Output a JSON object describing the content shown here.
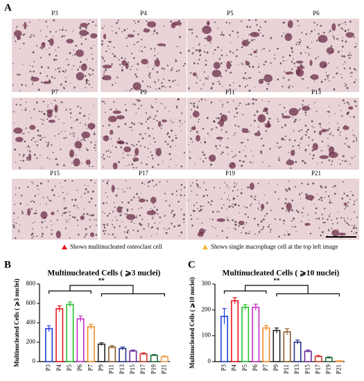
{
  "panel_a": {
    "label": "A",
    "images": [
      "P3",
      "P4",
      "P5",
      "P6",
      "P7",
      "P9",
      "P11",
      "P13",
      "P15",
      "P17",
      "P19",
      "P21"
    ],
    "legend": [
      "Shows multinucleated osteoclast cell",
      "Shows single macrophage cell at the top left image"
    ]
  },
  "chart_data": [
    {
      "type": "bar",
      "panel": "B",
      "title": "Multinucleated Cells ( ⩾3 nuclei)",
      "y_label": "Multinucleated Cells ( ⩾3 nuclei)",
      "categories": [
        "P3",
        "P4",
        "P5",
        "P6",
        "P7",
        "P9",
        "P11",
        "P13",
        "P15",
        "P17",
        "P19",
        "P21"
      ],
      "values": [
        340,
        545,
        590,
        440,
        360,
        180,
        150,
        135,
        110,
        80,
        65,
        50
      ],
      "errors": [
        30,
        30,
        25,
        30,
        25,
        15,
        15,
        15,
        10,
        10,
        8,
        8
      ],
      "colors": [
        "#1f3fd6",
        "#e8141b",
        "#22c22b",
        "#c42bc8",
        "#f08a24",
        "#222222",
        "#8a5a2b",
        "#23308f",
        "#6a2b9a",
        "#d0352d",
        "#1e6b3a",
        "#f0a050"
      ],
      "ylim": [
        0,
        800
      ],
      "yticks": [
        0,
        200,
        400,
        600,
        800
      ],
      "annotation": "**"
    },
    {
      "type": "bar",
      "panel": "C",
      "title": "Multinucleated Cells ( ⩾10 nuclei)",
      "y_label": "Multinucleated Cells ( ⩾10 nuclei)",
      "categories": [
        "P3",
        "P4",
        "P5",
        "P6",
        "P7",
        "P9",
        "P11",
        "P13",
        "P15",
        "P17",
        "P19",
        "P21"
      ],
      "values": [
        175,
        235,
        210,
        210,
        130,
        120,
        115,
        75,
        40,
        20,
        15,
        3
      ],
      "errors": [
        30,
        12,
        10,
        12,
        10,
        10,
        12,
        8,
        5,
        4,
        3,
        1
      ],
      "colors": [
        "#1f3fd6",
        "#e8141b",
        "#22c22b",
        "#c42bc8",
        "#f08a24",
        "#222222",
        "#8a5a2b",
        "#23308f",
        "#6a2b9a",
        "#d0352d",
        "#1e6b3a",
        "#f0a050"
      ],
      "ylim": [
        0,
        300
      ],
      "yticks": [
        0,
        100,
        200,
        300
      ],
      "annotation": "**"
    }
  ]
}
